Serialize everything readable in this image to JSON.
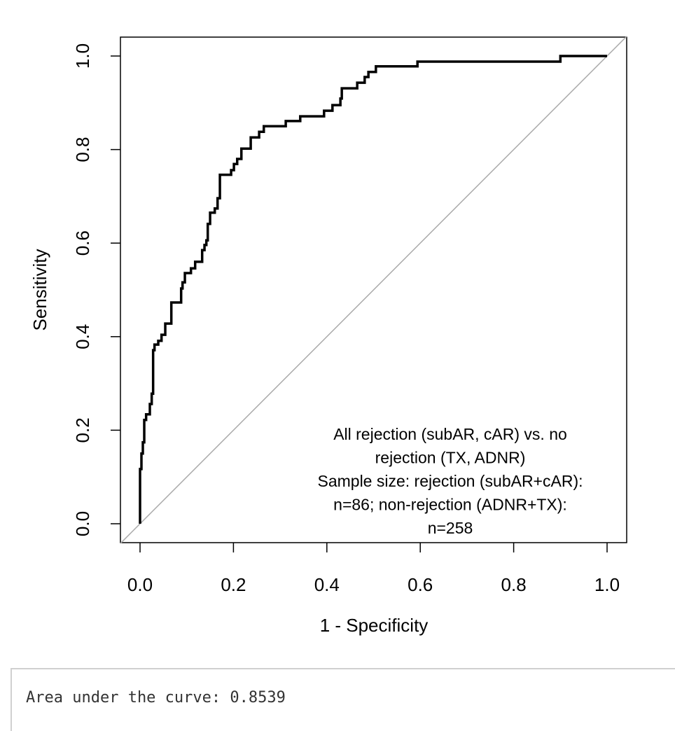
{
  "chart_data": {
    "type": "line",
    "xlabel": "1 - Specificity",
    "ylabel": "Sensitivity",
    "xlim": [
      0,
      1
    ],
    "ylim": [
      0,
      1
    ],
    "xticks": [
      "0.0",
      "0.2",
      "0.4",
      "0.6",
      "0.8",
      "1.0"
    ],
    "yticks": [
      "0.0",
      "0.2",
      "0.4",
      "0.6",
      "0.8",
      "1.0"
    ],
    "grid": false,
    "annotation": [
      "All rejection (subAR, cAR) vs. no",
      "rejection (TX, ADNR)",
      "Sample size: rejection (subAR+cAR):",
      "n=86; non-rejection (ADNR+TX):",
      "n=258"
    ],
    "annotation_placement": "bottom-right",
    "reference_line": {
      "name": "chance diagonal",
      "x": [
        0,
        1
      ],
      "y": [
        0,
        1
      ],
      "color": "#aaaaaa"
    },
    "curve": {
      "name": "ROC",
      "color": "#000000",
      "step": "horizontal-then-vertical",
      "points": [
        [
          0,
          0
        ],
        [
          0,
          0.117
        ],
        [
          0.003,
          0.15
        ],
        [
          0.006,
          0.174
        ],
        [
          0.009,
          0.222
        ],
        [
          0.013,
          0.234
        ],
        [
          0.021,
          0.256
        ],
        [
          0.025,
          0.278
        ],
        [
          0.028,
          0.371
        ],
        [
          0.031,
          0.383
        ],
        [
          0.039,
          0.391
        ],
        [
          0.046,
          0.404
        ],
        [
          0.054,
          0.428
        ],
        [
          0.067,
          0.473
        ],
        [
          0.088,
          0.503
        ],
        [
          0.091,
          0.516
        ],
        [
          0.096,
          0.536
        ],
        [
          0.109,
          0.546
        ],
        [
          0.118,
          0.56
        ],
        [
          0.133,
          0.585
        ],
        [
          0.138,
          0.596
        ],
        [
          0.142,
          0.606
        ],
        [
          0.145,
          0.641
        ],
        [
          0.15,
          0.665
        ],
        [
          0.16,
          0.674
        ],
        [
          0.166,
          0.696
        ],
        [
          0.171,
          0.746
        ],
        [
          0.195,
          0.756
        ],
        [
          0.201,
          0.769
        ],
        [
          0.208,
          0.78
        ],
        [
          0.217,
          0.802
        ],
        [
          0.237,
          0.826
        ],
        [
          0.255,
          0.838
        ],
        [
          0.265,
          0.85
        ],
        [
          0.312,
          0.861
        ],
        [
          0.343,
          0.871
        ],
        [
          0.394,
          0.883
        ],
        [
          0.412,
          0.895
        ],
        [
          0.429,
          0.909
        ],
        [
          0.432,
          0.931
        ],
        [
          0.465,
          0.943
        ],
        [
          0.481,
          0.955
        ],
        [
          0.489,
          0.966
        ],
        [
          0.505,
          0.978
        ],
        [
          0.594,
          0.988
        ],
        [
          0.9,
          1.0
        ],
        [
          1.0,
          1.0
        ]
      ]
    }
  },
  "output": {
    "text": "Area under the curve: 0.8539"
  }
}
